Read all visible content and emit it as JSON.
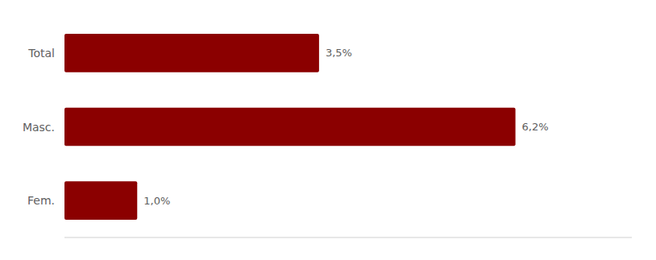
{
  "chart_data": {
    "type": "bar",
    "orientation": "horizontal",
    "categories": [
      "Total",
      "Masc.",
      "Fem."
    ],
    "values": [
      3.5,
      6.2,
      1.0
    ],
    "value_labels": [
      "3,5%",
      "6,2%",
      "1,0%"
    ],
    "data_labels": true,
    "color": "#8B0000",
    "xlim": [
      0,
      7.8
    ],
    "tick_labels": "y"
  }
}
